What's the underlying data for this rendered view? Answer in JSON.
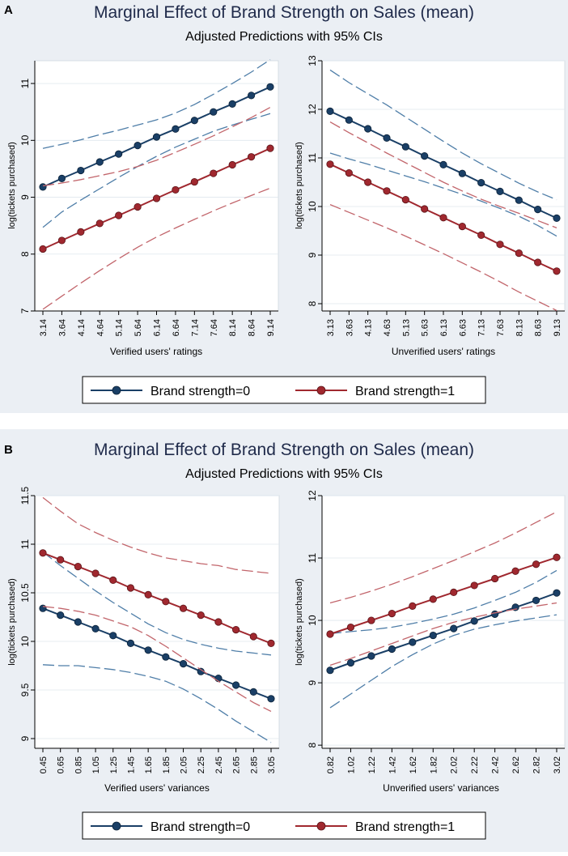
{
  "colors": {
    "panel_bg": "#ebeff4",
    "plot_bg": "#ffffff",
    "title": "#1f2a4a",
    "series0": "#1a3f66",
    "series1": "#a0282f",
    "ci0": "#4f7ea8",
    "ci1": "#c2656b",
    "axis": "#000000",
    "grid": "#dfe7ee"
  },
  "panels": [
    {
      "id": "A",
      "letter": "A",
      "title": "Marginal Effect of Brand Strength on Sales (mean)",
      "subtitle": "Adjusted Predictions with 95% CIs",
      "legend": [
        "Brand strength=0",
        "Brand strength=1"
      ]
    },
    {
      "id": "B",
      "letter": "B",
      "title": "Marginal Effect of Brand Strength on Sales (mean)",
      "subtitle": "Adjusted Predictions with 95% CIs",
      "legend": [
        "Brand strength=0",
        "Brand strength=1"
      ]
    }
  ],
  "chart_data": [
    {
      "panel": "A",
      "type": "line",
      "title": "",
      "xlabel": "Verified users' ratings",
      "ylabel": "log(tickets purchased)",
      "categories": [
        "3.14",
        "3.64",
        "4.14",
        "4.64",
        "5.14",
        "5.64",
        "6.14",
        "6.64",
        "7.14",
        "7.64",
        "8.14",
        "8.64",
        "9.14"
      ],
      "xlim": [
        3.14,
        9.14
      ],
      "ylim": [
        7,
        11.4
      ],
      "yticks": [
        7,
        8,
        9,
        10,
        11
      ],
      "ytick_labels": [
        "7",
        "8",
        "9",
        "10",
        "11"
      ],
      "series": [
        {
          "name": "Brand strength=0",
          "values": [
            9.18,
            9.33,
            9.47,
            9.62,
            9.76,
            9.91,
            10.06,
            10.2,
            10.35,
            10.5,
            10.64,
            10.79,
            10.94
          ],
          "ci_lower": [
            8.47,
            8.74,
            8.95,
            9.15,
            9.35,
            9.54,
            9.72,
            9.88,
            10.02,
            10.16,
            10.27,
            10.37,
            10.47
          ],
          "ci_upper": [
            9.86,
            9.93,
            10.01,
            10.1,
            10.18,
            10.27,
            10.36,
            10.48,
            10.63,
            10.81,
            11.0,
            11.2,
            11.42
          ]
        },
        {
          "name": "Brand strength=1",
          "values": [
            8.09,
            8.24,
            8.39,
            8.54,
            8.68,
            8.83,
            8.98,
            9.13,
            9.27,
            9.42,
            9.57,
            9.71,
            9.86
          ],
          "ci_lower": [
            7.03,
            7.26,
            7.49,
            7.71,
            7.92,
            8.12,
            8.3,
            8.46,
            8.61,
            8.76,
            8.9,
            9.03,
            9.16
          ],
          "ci_upper": [
            9.2,
            9.25,
            9.31,
            9.38,
            9.45,
            9.54,
            9.65,
            9.79,
            9.93,
            10.08,
            10.24,
            10.4,
            10.58
          ]
        }
      ]
    },
    {
      "panel": "A",
      "type": "line",
      "title": "",
      "xlabel": "Unverified users' ratings",
      "ylabel": "log(tickets purchased)",
      "categories": [
        "3.13",
        "3.63",
        "4.13",
        "4.63",
        "5.13",
        "5.63",
        "6.13",
        "6.63",
        "7.13",
        "7.63",
        "8.13",
        "8.63",
        "9.13"
      ],
      "xlim": [
        3.13,
        9.13
      ],
      "ylim": [
        7.85,
        13
      ],
      "yticks": [
        8,
        9,
        10,
        11,
        12,
        13
      ],
      "ytick_labels": [
        "8",
        "9",
        "10",
        "11",
        "12",
        "13"
      ],
      "series": [
        {
          "name": "Brand strength=0",
          "values": [
            11.96,
            11.78,
            11.6,
            11.41,
            11.23,
            11.04,
            10.86,
            10.68,
            10.49,
            10.31,
            10.13,
            9.94,
            9.76
          ],
          "ci_lower": [
            11.1,
            10.98,
            10.87,
            10.75,
            10.63,
            10.51,
            10.38,
            10.25,
            10.11,
            9.96,
            9.8,
            9.61,
            9.39
          ],
          "ci_upper": [
            12.81,
            12.55,
            12.32,
            12.09,
            11.84,
            11.59,
            11.34,
            11.1,
            10.88,
            10.68,
            10.48,
            10.3,
            10.14
          ]
        },
        {
          "name": "Brand strength=1",
          "values": [
            10.87,
            10.69,
            10.5,
            10.32,
            10.14,
            9.95,
            9.77,
            9.59,
            9.41,
            9.22,
            9.04,
            8.85,
            8.67
          ],
          "ci_lower": [
            10.04,
            9.88,
            9.72,
            9.56,
            9.39,
            9.21,
            9.03,
            8.84,
            8.65,
            8.45,
            8.24,
            8.05,
            7.86
          ],
          "ci_upper": [
            11.74,
            11.52,
            11.31,
            11.1,
            10.9,
            10.7,
            10.5,
            10.32,
            10.15,
            10.0,
            9.86,
            9.71,
            9.56
          ]
        }
      ]
    },
    {
      "panel": "B",
      "type": "line",
      "title": "",
      "xlabel": "Verified users' variances",
      "ylabel": "log(tickets purchased)",
      "categories": [
        "0.45",
        "0.65",
        "0.85",
        "1.05",
        "1.25",
        "1.45",
        "1.65",
        "1.85",
        "2.05",
        "2.25",
        "2.45",
        "2.65",
        "2.85",
        "3.05"
      ],
      "xlim": [
        0.45,
        3.05
      ],
      "ylim": [
        8.9,
        11.5
      ],
      "yticks": [
        9,
        9.5,
        10,
        10.5,
        11,
        11.5
      ],
      "ytick_labels": [
        "9",
        "9.5",
        "10",
        "10.5",
        "11",
        "11.5"
      ],
      "series": [
        {
          "name": "Brand strength=0",
          "values": [
            10.34,
            10.27,
            10.2,
            10.13,
            10.06,
            9.98,
            9.91,
            9.84,
            9.77,
            9.69,
            9.62,
            9.55,
            9.48,
            9.41
          ],
          "ci_lower": [
            9.76,
            9.75,
            9.75,
            9.73,
            9.71,
            9.68,
            9.64,
            9.59,
            9.51,
            9.41,
            9.3,
            9.18,
            9.07,
            8.96
          ],
          "ci_upper": [
            10.92,
            10.78,
            10.65,
            10.52,
            10.4,
            10.29,
            10.18,
            10.09,
            10.02,
            9.97,
            9.93,
            9.9,
            9.88,
            9.86
          ]
        },
        {
          "name": "Brand strength=1",
          "values": [
            10.91,
            10.84,
            10.77,
            10.7,
            10.63,
            10.55,
            10.48,
            10.41,
            10.34,
            10.27,
            10.2,
            10.12,
            10.05,
            9.98
          ],
          "ci_lower": [
            10.36,
            10.34,
            10.31,
            10.27,
            10.21,
            10.15,
            10.06,
            9.95,
            9.83,
            9.71,
            9.59,
            9.48,
            9.37,
            9.28
          ],
          "ci_upper": [
            11.48,
            11.34,
            11.21,
            11.12,
            11.04,
            10.97,
            10.91,
            10.86,
            10.83,
            10.8,
            10.78,
            10.74,
            10.72,
            10.7
          ]
        }
      ]
    },
    {
      "panel": "B",
      "type": "line",
      "title": "",
      "xlabel": "Unverified users' variances",
      "ylabel": "log(tickets purchased)",
      "categories": [
        "0.82",
        "1.02",
        "1.22",
        "1.42",
        "1.62",
        "1.82",
        "2.02",
        "2.22",
        "2.42",
        "2.62",
        "2.82",
        "3.02"
      ],
      "xlim": [
        0.82,
        3.02
      ],
      "ylim": [
        7.95,
        12
      ],
      "yticks": [
        8,
        9,
        10,
        11,
        12
      ],
      "ytick_labels": [
        "8",
        "9",
        "10",
        "11",
        "12"
      ],
      "series": [
        {
          "name": "Brand strength=0",
          "values": [
            9.2,
            9.32,
            9.43,
            9.54,
            9.65,
            9.76,
            9.87,
            9.99,
            10.1,
            10.21,
            10.32,
            10.44
          ],
          "ci_lower": [
            8.6,
            8.82,
            9.04,
            9.26,
            9.45,
            9.62,
            9.76,
            9.86,
            9.93,
            9.99,
            10.04,
            10.09
          ],
          "ci_upper": [
            9.79,
            9.82,
            9.85,
            9.89,
            9.95,
            10.02,
            10.1,
            10.2,
            10.32,
            10.45,
            10.61,
            10.8
          ]
        },
        {
          "name": "Brand strength=1",
          "values": [
            9.78,
            9.89,
            10.0,
            10.11,
            10.23,
            10.34,
            10.45,
            10.56,
            10.67,
            10.79,
            10.9,
            11.01
          ],
          "ci_lower": [
            9.28,
            9.39,
            9.51,
            9.63,
            9.75,
            9.87,
            9.97,
            10.05,
            10.12,
            10.18,
            10.23,
            10.28
          ],
          "ci_upper": [
            10.28,
            10.37,
            10.47,
            10.58,
            10.7,
            10.83,
            10.96,
            11.1,
            11.24,
            11.4,
            11.57,
            11.74
          ]
        }
      ]
    }
  ]
}
